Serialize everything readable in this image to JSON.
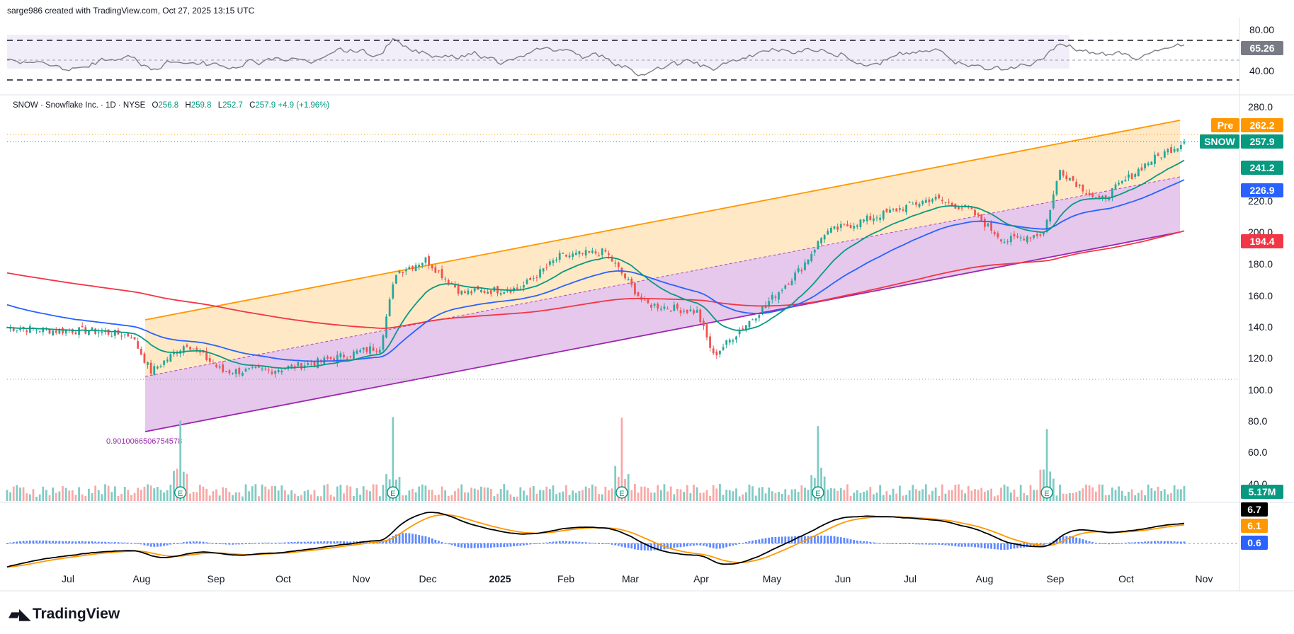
{
  "header": {
    "credit": "sarge986 created with TradingView.com, Oct 27, 2025 13:15 UTC"
  },
  "legend": {
    "symbol": "SNOW · Snowflake Inc. · 1D · NYSE",
    "o_label": "O",
    "o": "256.8",
    "h_label": "H",
    "h": "259.8",
    "l_label": "L",
    "l": "252.7",
    "c_label": "C",
    "c": "257.9",
    "change": "+4.9 (+1.96%)"
  },
  "brand": {
    "name": "TradingView",
    "logo_icon": "tradingview-logo-icon"
  },
  "rsi": {
    "ticks": [
      "80.00",
      "40.00"
    ],
    "value": "65.26"
  },
  "price_axis": {
    "ticks": [
      "280.0",
      "220.0",
      "200.0",
      "180.0",
      "160.0",
      "140.0",
      "120.0",
      "100.0",
      "80.0",
      "60.0",
      "40.0"
    ]
  },
  "badges": {
    "pre_label": "Pre",
    "pre_value": "262.2",
    "symbol_label": "SNOW",
    "symbol_value": "257.9",
    "ema_fast": "241.2",
    "ema_mid": "226.9",
    "ema_slow": "194.4",
    "volume": "5.17M"
  },
  "macd": {
    "macd": "6.7",
    "signal": "6.1",
    "hist": "0.6"
  },
  "fib_label": "0.9010066506754578",
  "earnings_marker": "E",
  "x_axis": {
    "labels": [
      "Jul",
      "Aug",
      "Sep",
      "Oct",
      "Nov",
      "Dec",
      "2025",
      "Feb",
      "Mar",
      "Apr",
      "May",
      "Jun",
      "Jul",
      "Aug",
      "Sep",
      "Oct",
      "Nov"
    ]
  },
  "colors": {
    "up": "#26a69a",
    "down": "#ef5350",
    "ema20": "#089981",
    "ema50": "#2962ff",
    "ema200": "#f23645",
    "channel_upper": "#ff9800",
    "channel_lower": "#9c27b0"
  },
  "chart_data": {
    "type": "candlestick",
    "symbol": "SNOW",
    "ylim": [
      70,
      290
    ],
    "x_labels": [
      "Jul",
      "Aug",
      "Sep",
      "Oct",
      "Nov",
      "Dec",
      "2025",
      "Feb",
      "Mar",
      "Apr",
      "May",
      "Jun",
      "Jul",
      "Aug",
      "Sep",
      "Oct",
      "Nov"
    ],
    "close_series": [
      {
        "x": "2024-07-01",
        "y": 138
      },
      {
        "x": "2024-07-15",
        "y": 138
      },
      {
        "x": "2024-08-01",
        "y": 135
      },
      {
        "x": "2024-08-10",
        "y": 112
      },
      {
        "x": "2024-08-25",
        "y": 130
      },
      {
        "x": "2024-09-10",
        "y": 112
      },
      {
        "x": "2024-10-01",
        "y": 113
      },
      {
        "x": "2024-10-20",
        "y": 118
      },
      {
        "x": "2024-11-15",
        "y": 128
      },
      {
        "x": "2024-11-22",
        "y": 175
      },
      {
        "x": "2024-12-05",
        "y": 183
      },
      {
        "x": "2024-12-20",
        "y": 162
      },
      {
        "x": "2025-01-15",
        "y": 165
      },
      {
        "x": "2025-02-01",
        "y": 185
      },
      {
        "x": "2025-02-20",
        "y": 188
      },
      {
        "x": "2025-03-10",
        "y": 155
      },
      {
        "x": "2025-04-01",
        "y": 150
      },
      {
        "x": "2025-04-08",
        "y": 122
      },
      {
        "x": "2025-04-25",
        "y": 148
      },
      {
        "x": "2025-05-15",
        "y": 178
      },
      {
        "x": "2025-05-25",
        "y": 200
      },
      {
        "x": "2025-06-15",
        "y": 210
      },
      {
        "x": "2025-07-10",
        "y": 222
      },
      {
        "x": "2025-07-25",
        "y": 215
      },
      {
        "x": "2025-08-10",
        "y": 195
      },
      {
        "x": "2025-08-27",
        "y": 200
      },
      {
        "x": "2025-09-03",
        "y": 240
      },
      {
        "x": "2025-09-20",
        "y": 220
      },
      {
        "x": "2025-10-10",
        "y": 245
      },
      {
        "x": "2025-10-27",
        "y": 257.9
      }
    ],
    "ema_20": {
      "last": 241.2
    },
    "ema_50": {
      "last": 226.9
    },
    "ema_200": {
      "last": 194.4
    },
    "pre_market": 262.2,
    "volume_last": "5.17M",
    "rsi": {
      "last": 65.26,
      "levels": [
        70,
        30
      ]
    },
    "macd": {
      "macd": 6.7,
      "signal": 6.1,
      "histogram": 0.6
    }
  }
}
